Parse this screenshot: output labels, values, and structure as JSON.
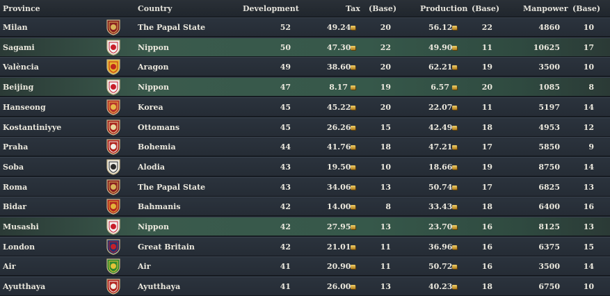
{
  "columns": {
    "province": "Province",
    "country": "Country",
    "development": "Development",
    "tax": "Tax",
    "tax_base": "(Base)",
    "production": "Production",
    "production_base": "(Base)",
    "manpower": "Manpower",
    "manpower_base": "(Base)"
  },
  "rows": [
    {
      "province": "Milan",
      "country": "The Papal State",
      "flag": "papal-state-flag-icon",
      "colors": [
        "#8a1f1f",
        "#d8b45a"
      ],
      "development": "52",
      "tax": "49.24",
      "tax_base": "20",
      "production": "56.12",
      "production_base": "22",
      "manpower": "4860",
      "manpower_base": "10",
      "highlight": false
    },
    {
      "province": "Sagami",
      "country": "Nippon",
      "flag": "nippon-flag-icon",
      "colors": [
        "#f2f2f2",
        "#c81e2a"
      ],
      "development": "50",
      "tax": "47.30",
      "tax_base": "22",
      "production": "49.90",
      "production_base": "11",
      "manpower": "10625",
      "manpower_base": "17",
      "highlight": true
    },
    {
      "province": "València",
      "country": "Aragon",
      "flag": "aragon-flag-icon",
      "colors": [
        "#e7b52b",
        "#c0271d"
      ],
      "development": "49",
      "tax": "38.60",
      "tax_base": "20",
      "production": "62.21",
      "production_base": "19",
      "manpower": "3500",
      "manpower_base": "10",
      "highlight": false
    },
    {
      "province": "Beijing",
      "country": "Nippon",
      "flag": "nippon-flag-icon",
      "colors": [
        "#f2f2f2",
        "#c81e2a"
      ],
      "development": "47",
      "tax": "8.17",
      "tax_base": "19",
      "production": "6.57",
      "production_base": "20",
      "manpower": "1085",
      "manpower_base": "8",
      "highlight": true
    },
    {
      "province": "Hanseong",
      "country": "Korea",
      "flag": "korea-flag-icon",
      "colors": [
        "#b8322a",
        "#e7b84a"
      ],
      "development": "45",
      "tax": "45.22",
      "tax_base": "20",
      "production": "22.07",
      "production_base": "11",
      "manpower": "5197",
      "manpower_base": "14",
      "highlight": false
    },
    {
      "province": "Kostantiniyye",
      "country": "Ottomans",
      "flag": "ottomans-flag-icon",
      "colors": [
        "#a8221d",
        "#e9d8a0"
      ],
      "development": "45",
      "tax": "26.26",
      "tax_base": "15",
      "production": "42.49",
      "production_base": "18",
      "manpower": "4953",
      "manpower_base": "12",
      "highlight": false
    },
    {
      "province": "Praha",
      "country": "Bohemia",
      "flag": "bohemia-flag-icon",
      "colors": [
        "#b2231e",
        "#f0eee6"
      ],
      "development": "44",
      "tax": "41.76",
      "tax_base": "18",
      "production": "47.21",
      "production_base": "17",
      "manpower": "5850",
      "manpower_base": "9",
      "highlight": false
    },
    {
      "province": "Soba",
      "country": "Alodia",
      "flag": "alodia-flag-icon",
      "colors": [
        "#ecebe4",
        "#2a2a2a"
      ],
      "development": "43",
      "tax": "19.50",
      "tax_base": "10",
      "production": "18.66",
      "production_base": "19",
      "manpower": "8750",
      "manpower_base": "14",
      "highlight": false
    },
    {
      "province": "Roma",
      "country": "The Papal State",
      "flag": "papal-state-flag-icon",
      "colors": [
        "#8a1f1f",
        "#d8b45a"
      ],
      "development": "43",
      "tax": "34.06",
      "tax_base": "13",
      "production": "50.74",
      "production_base": "17",
      "manpower": "6825",
      "manpower_base": "13",
      "highlight": false
    },
    {
      "province": "Bidar",
      "country": "Bahmanis",
      "flag": "bahmanis-flag-icon",
      "colors": [
        "#b3261f",
        "#e2b33a"
      ],
      "development": "42",
      "tax": "14.00",
      "tax_base": "8",
      "production": "33.43",
      "production_base": "18",
      "manpower": "6400",
      "manpower_base": "16",
      "highlight": false
    },
    {
      "province": "Musashi",
      "country": "Nippon",
      "flag": "nippon-flag-icon",
      "colors": [
        "#f2f2f2",
        "#c81e2a"
      ],
      "development": "42",
      "tax": "27.95",
      "tax_base": "13",
      "production": "23.70",
      "production_base": "16",
      "manpower": "8125",
      "manpower_base": "13",
      "highlight": true
    },
    {
      "province": "London",
      "country": "Great Britain",
      "flag": "great-britain-flag-icon",
      "colors": [
        "#23336e",
        "#c4202a"
      ],
      "development": "42",
      "tax": "21.01",
      "tax_base": "11",
      "production": "36.96",
      "production_base": "16",
      "manpower": "6375",
      "manpower_base": "15",
      "highlight": false
    },
    {
      "province": "Air",
      "country": "Air",
      "flag": "air-flag-icon",
      "colors": [
        "#2f8a2e",
        "#e3c23a"
      ],
      "development": "41",
      "tax": "20.90",
      "tax_base": "11",
      "production": "50.72",
      "production_base": "16",
      "manpower": "3500",
      "manpower_base": "14",
      "highlight": false
    },
    {
      "province": "Ayutthaya",
      "country": "Ayutthaya",
      "flag": "ayutthaya-flag-icon",
      "colors": [
        "#b3231e",
        "#f0ede4"
      ],
      "development": "41",
      "tax": "26.00",
      "tax_base": "13",
      "production": "40.23",
      "production_base": "18",
      "manpower": "6750",
      "manpower_base": "10",
      "highlight": false
    }
  ]
}
